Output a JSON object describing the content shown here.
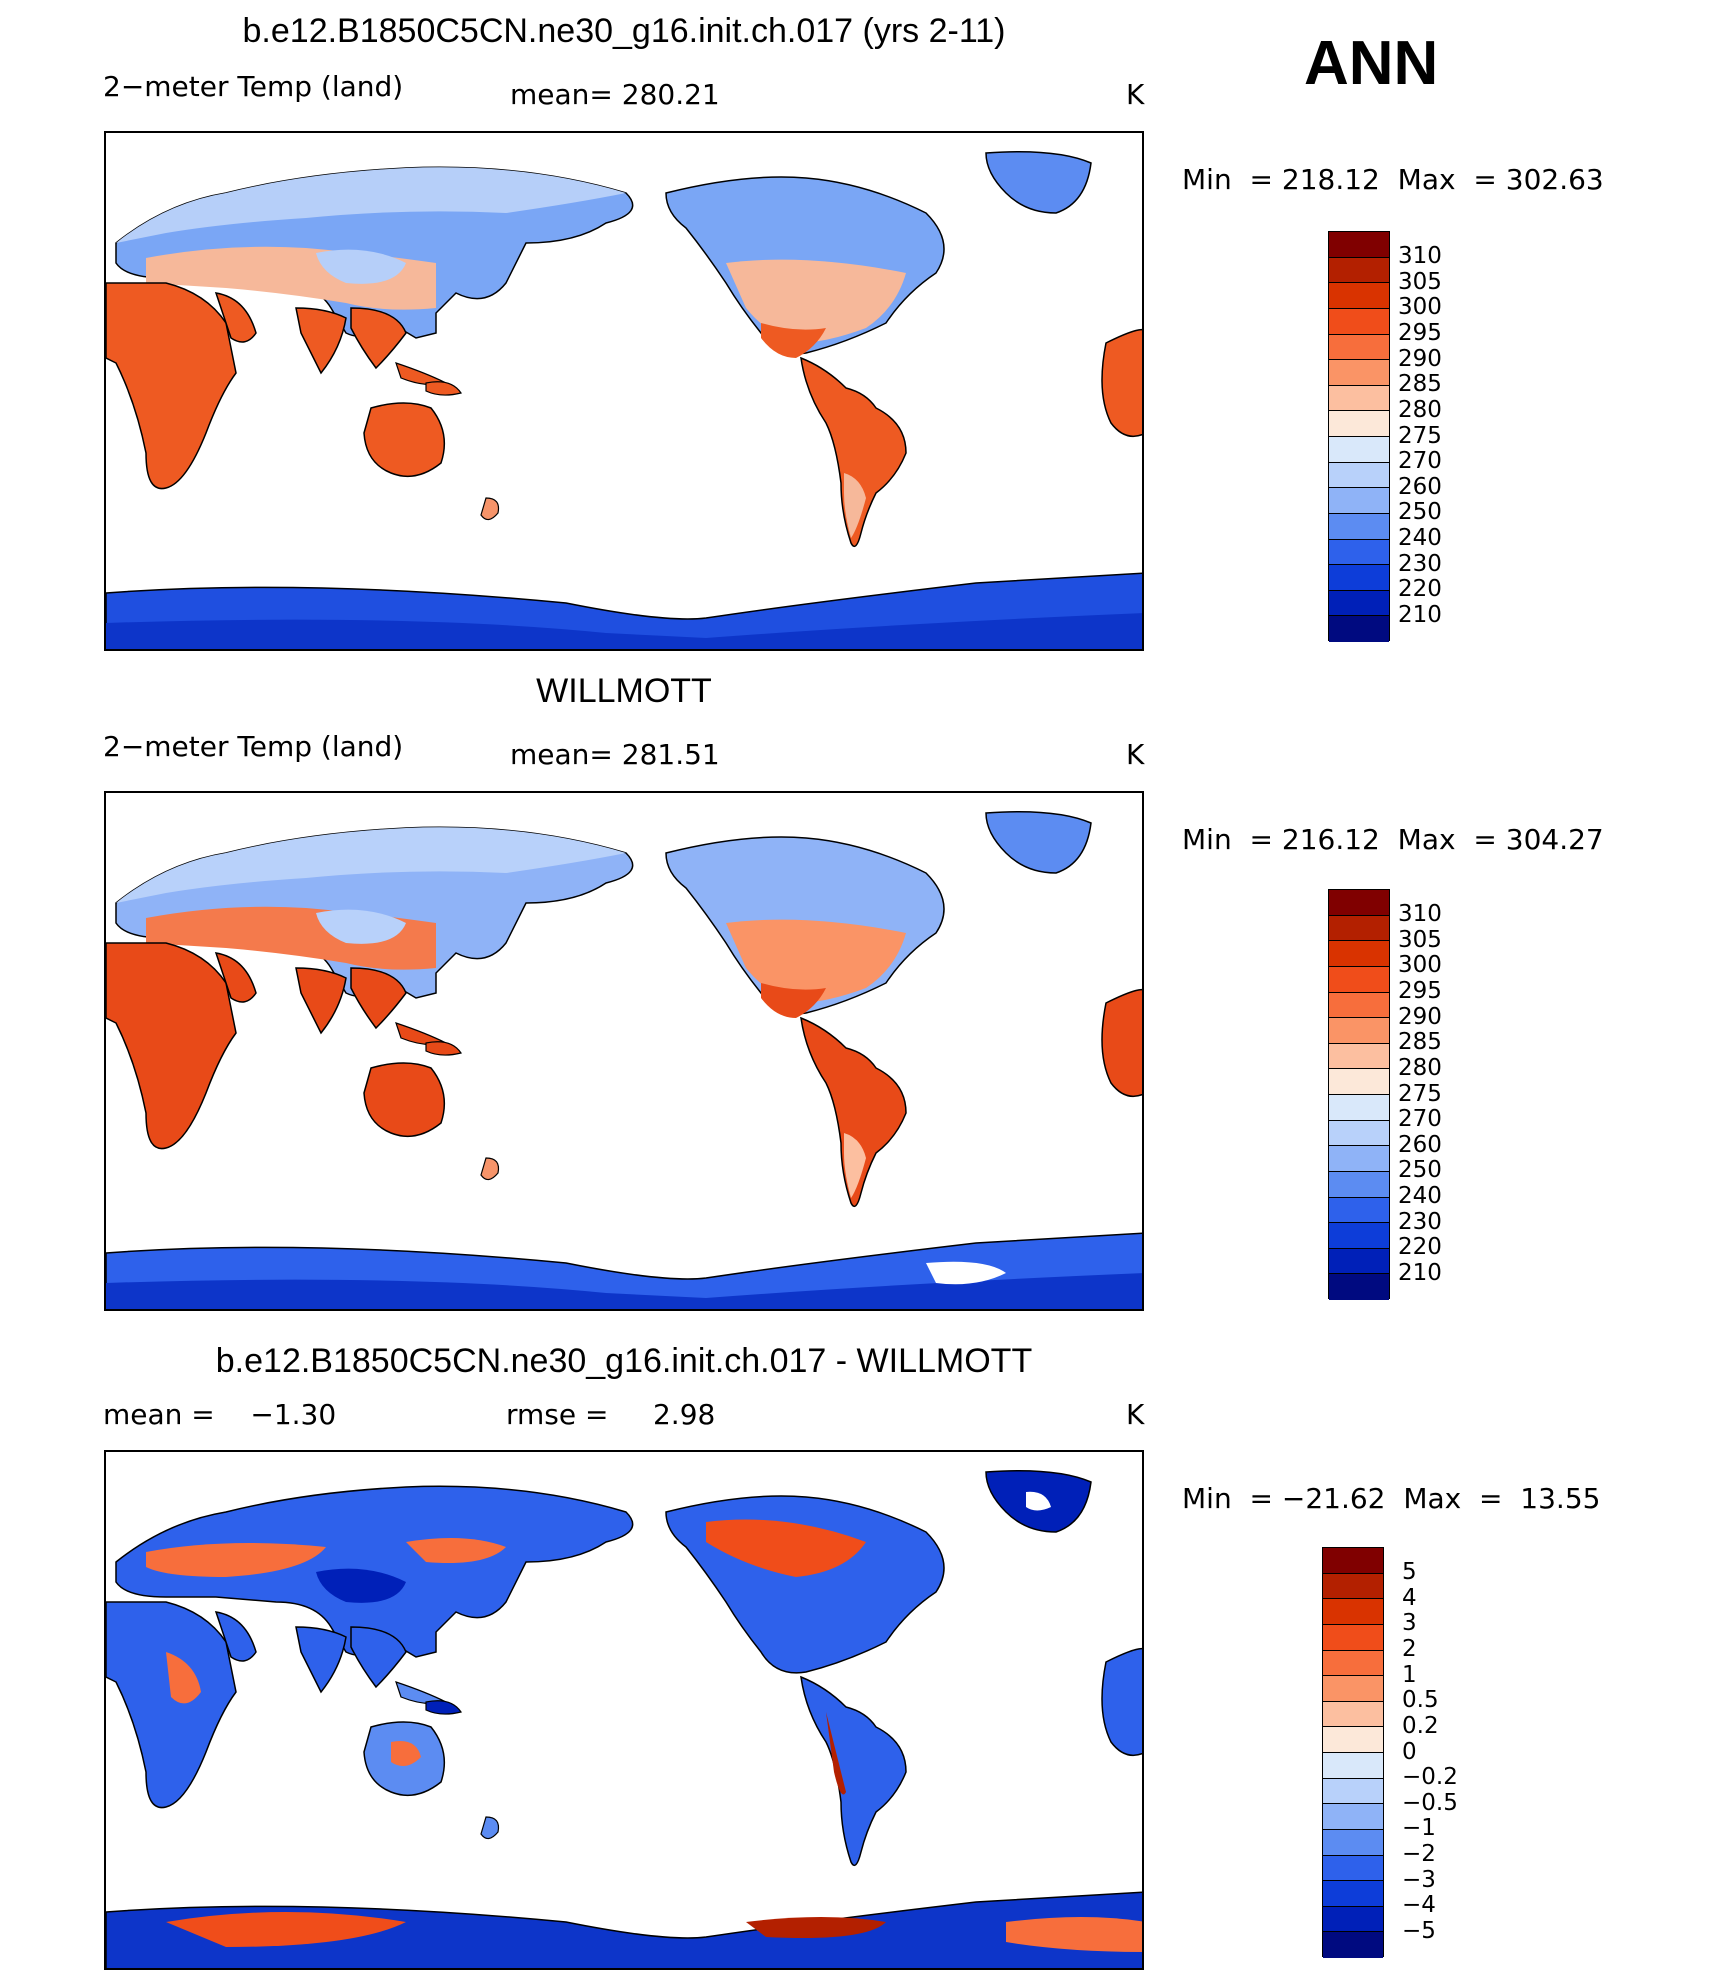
{
  "season": "ANN",
  "panels": [
    {
      "title": "b.e12.B1850C5CN.ne30_g16.init.ch.017 (yrs 2-11)",
      "left_label": "2−meter Temp (land)",
      "center_label": "mean= 280.21",
      "units": "K",
      "min_label": "Min",
      "min_eq": "=",
      "min_value": "218.12",
      "max_label": "Max",
      "max_eq": "=",
      "max_value": "302.63",
      "colorbar_labels": [
        "310",
        "305",
        "300",
        "295",
        "290",
        "285",
        "280",
        "275",
        "270",
        "260",
        "250",
        "240",
        "230",
        "220",
        "210"
      ]
    },
    {
      "title": "WILLMOTT",
      "left_label": "2−meter Temp (land)",
      "center_label": "mean= 281.51",
      "units": "K",
      "min_label": "Min",
      "min_eq": "=",
      "min_value": "216.12",
      "max_label": "Max",
      "max_eq": "=",
      "max_value": "304.27",
      "colorbar_labels": [
        "310",
        "305",
        "300",
        "295",
        "290",
        "285",
        "280",
        "275",
        "270",
        "260",
        "250",
        "240",
        "230",
        "220",
        "210"
      ]
    },
    {
      "title": "b.e12.B1850C5CN.ne30_g16.init.ch.017 - WILLMOTT",
      "left_label": "mean =    −1.30",
      "center_label": "rmse =     2.98",
      "units": "K",
      "min_label": "Min",
      "min_eq": "=",
      "min_value": "−21.62",
      "max_label": "Max",
      "max_eq": "=",
      "max_value": "13.55",
      "colorbar_labels": [
        "5",
        "4",
        "3",
        "2",
        "1",
        "0.5",
        "0.2",
        "0",
        "−0.2",
        "−0.5",
        "−1",
        "−2",
        "−3",
        "−4",
        "−5"
      ]
    }
  ],
  "colors": {
    "temp_scale": [
      "#800000",
      "#b32000",
      "#d93300",
      "#f04d1a",
      "#f76e3c",
      "#fa9466",
      "#fcbfa0",
      "#fce8d9",
      "#d9e8fa",
      "#b8d1fa",
      "#8fb3f7",
      "#5c8cf2",
      "#2e61eb",
      "#0d3dd9",
      "#0020b8",
      "#000a80"
    ],
    "diff_scale": [
      "#800000",
      "#b32000",
      "#d93300",
      "#f04d1a",
      "#f76e3c",
      "#fa9466",
      "#fcbfa0",
      "#fce8d9",
      "#d9e8fa",
      "#b8d1fa",
      "#8fb3f7",
      "#5c8cf2",
      "#2e61eb",
      "#0d3dd9",
      "#0020b8",
      "#000a80"
    ]
  }
}
